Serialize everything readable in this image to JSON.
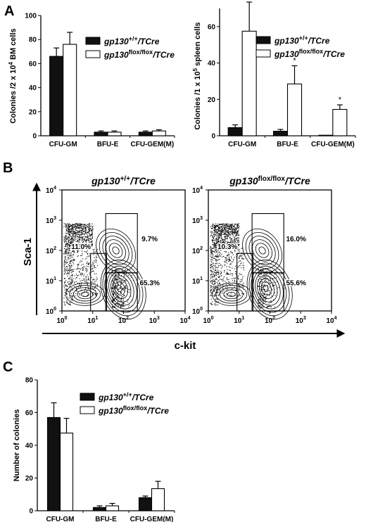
{
  "panels": {
    "A": "A",
    "B": "B",
    "C": "C"
  },
  "legend": {
    "wt_base": "gp130",
    "wt_sup": "+/+",
    "wt_tail": "/TCre",
    "ko_base": "gp130",
    "ko_sup": "flox/flox",
    "ko_tail": "/TCre"
  },
  "chart_data": [
    {
      "id": "A-left",
      "type": "bar",
      "ylabel": "Colonies /2 x 10^4 BM cells",
      "categories": [
        "CFU-GM",
        "BFU-E",
        "CFU-GEM(M)"
      ],
      "ylim": [
        0,
        100
      ],
      "yticks": [
        0,
        20,
        40,
        60,
        80,
        100
      ],
      "series": [
        {
          "name": "gp130 +/+/TCre",
          "color": "#111111",
          "values": [
            66,
            3,
            3
          ],
          "errors": [
            7,
            1,
            1
          ]
        },
        {
          "name": "gp130 flox/flox/TCre",
          "color": "#ffffff",
          "values": [
            76,
            3,
            4
          ],
          "errors": [
            10,
            1,
            1
          ]
        }
      ],
      "significance": [
        "",
        "",
        ""
      ]
    },
    {
      "id": "A-right",
      "type": "bar",
      "ylabel": "Colonies /1 x 10^5 spleen cells",
      "categories": [
        "CFU-GM",
        "BFU-E",
        "CFU-GEM(M)"
      ],
      "ylim": [
        0,
        70
      ],
      "yticks": [
        0,
        20,
        40,
        60
      ],
      "series": [
        {
          "name": "gp130 +/+/TCre",
          "color": "#111111",
          "values": [
            4.5,
            2.5,
            0.2
          ],
          "errors": [
            1.5,
            1,
            0
          ]
        },
        {
          "name": "gp130 flox/flox/TCre",
          "color": "#ffffff",
          "values": [
            57.5,
            28.5,
            14.5
          ],
          "errors": [
            16,
            10,
            2.5
          ]
        }
      ],
      "significance": [
        "*",
        "*",
        "*"
      ]
    },
    {
      "id": "B-flow",
      "type": "scatter",
      "xlabel": "c-kit",
      "ylabel": "Sca-1",
      "tick_labels": [
        "10",
        "10",
        "10",
        "10",
        "10"
      ],
      "tick_exponents": [
        "0",
        "1",
        "2",
        "3",
        "4"
      ],
      "plots": [
        {
          "title_base": "gp130",
          "title_sup": "+/+",
          "title_tail": "/TCre",
          "gates": [
            "11.0%",
            "9.7%",
            "65.3%"
          ]
        },
        {
          "title_base": "gp130",
          "title_sup": "flox/flox",
          "title_tail": "/TCre",
          "gates": [
            "10.3%",
            "16.0%",
            "55.6%"
          ]
        }
      ]
    },
    {
      "id": "C",
      "type": "bar",
      "ylabel": "Number of colonies",
      "categories": [
        "CFU-GM",
        "BFU-E",
        "CFU-GEM(M)"
      ],
      "ylim": [
        0,
        80
      ],
      "yticks": [
        0,
        20,
        40,
        60,
        80
      ],
      "series": [
        {
          "name": "gp130 +/+/TCre",
          "color": "#111111",
          "values": [
            57,
            2,
            8
          ],
          "errors": [
            9,
            1,
            1
          ]
        },
        {
          "name": "gp130 flox/flox/TCre",
          "color": "#ffffff",
          "values": [
            47.5,
            3,
            13.5
          ],
          "errors": [
            9,
            1.5,
            4.5
          ]
        }
      ],
      "significance": [
        "",
        "",
        ""
      ]
    }
  ]
}
